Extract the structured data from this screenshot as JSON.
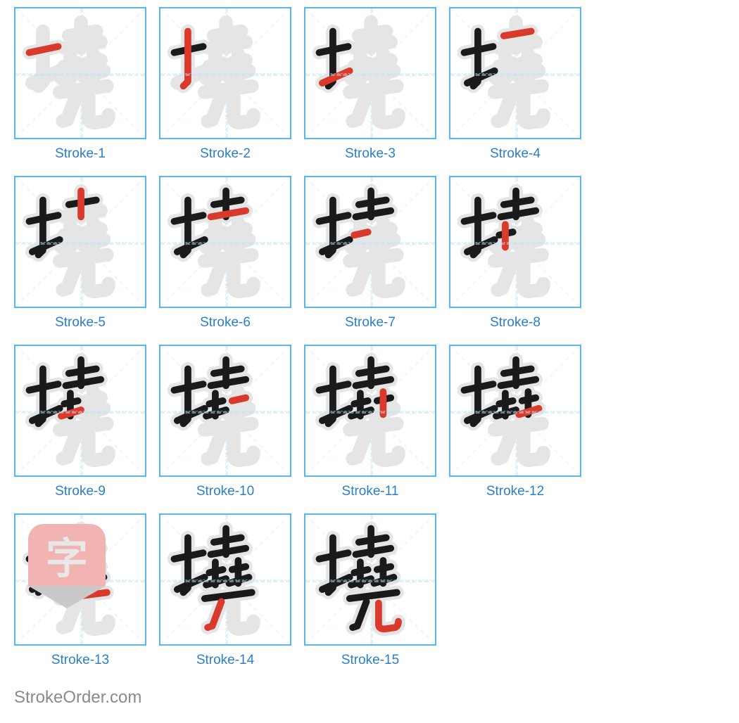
{
  "strokes": [
    {
      "label": "Stroke-1",
      "highlight": [
        0
      ],
      "show": [
        0
      ]
    },
    {
      "label": "Stroke-2",
      "highlight": [
        1
      ],
      "show": [
        0,
        1
      ]
    },
    {
      "label": "Stroke-3",
      "highlight": [
        2
      ],
      "show": [
        0,
        1,
        2
      ]
    },
    {
      "label": "Stroke-4",
      "highlight": [
        3
      ],
      "show": [
        0,
        1,
        2,
        3
      ]
    },
    {
      "label": "Stroke-5",
      "highlight": [
        4
      ],
      "show": [
        0,
        1,
        2,
        3,
        4
      ]
    },
    {
      "label": "Stroke-6",
      "highlight": [
        5
      ],
      "show": [
        0,
        1,
        2,
        3,
        4,
        5
      ]
    },
    {
      "label": "Stroke-7",
      "highlight": [
        6
      ],
      "show": [
        0,
        1,
        2,
        3,
        4,
        5,
        6
      ]
    },
    {
      "label": "Stroke-8",
      "highlight": [
        7
      ],
      "show": [
        0,
        1,
        2,
        3,
        4,
        5,
        6,
        7
      ]
    },
    {
      "label": "Stroke-9",
      "highlight": [
        8
      ],
      "show": [
        0,
        1,
        2,
        3,
        4,
        5,
        6,
        7,
        8
      ]
    },
    {
      "label": "Stroke-10",
      "highlight": [
        9
      ],
      "show": [
        0,
        1,
        2,
        3,
        4,
        5,
        6,
        7,
        8,
        9
      ]
    },
    {
      "label": "Stroke-11",
      "highlight": [
        10
      ],
      "show": [
        0,
        1,
        2,
        3,
        4,
        5,
        6,
        7,
        8,
        9,
        10
      ]
    },
    {
      "label": "Stroke-12",
      "highlight": [
        11
      ],
      "show": [
        0,
        1,
        2,
        3,
        4,
        5,
        6,
        7,
        8,
        9,
        10,
        11
      ]
    },
    {
      "label": "Stroke-13",
      "highlight": [
        12
      ],
      "show": [
        0,
        1,
        2,
        3,
        4,
        5,
        6,
        7,
        8,
        9,
        10,
        11,
        12
      ]
    },
    {
      "label": "Stroke-14",
      "highlight": [
        13
      ],
      "show": [
        0,
        1,
        2,
        3,
        4,
        5,
        6,
        7,
        8,
        9,
        10,
        11,
        12,
        13
      ]
    },
    {
      "label": "Stroke-15",
      "highlight": [
        14
      ],
      "show": [
        0,
        1,
        2,
        3,
        4,
        5,
        6,
        7,
        8,
        9,
        10,
        11,
        12,
        13,
        14
      ]
    }
  ],
  "stroke_paths": [
    "M 18 58 L 56 50",
    "M 36 30 L 36 96 L 30 102",
    "M 22 98 L 58 82",
    "M 70 36 L 106 30",
    "M 86 18 L 86 52",
    "M 66 52 L 112 44",
    "M 64 76 L 82 72",
    "M 72 62 L 72 92",
    "M 60 92 L 86 84",
    "M 94 72 L 112 68",
    "M 102 60 L 102 90",
    "M 90 90 L 116 82",
    "M 58 110 L 120 102",
    "M 80 114 L 68 146 L 62 148",
    "M 96 116 L 96 144 Q 96 150 104 150 L 118 148 Q 122 146 122 140"
  ],
  "colors": {
    "border": "#5cb6e6",
    "guide": "#bfe3f7",
    "ghost": "#e5e5e5",
    "ghost_fill": "#f0f0f0",
    "ink": "#1a1a1a",
    "highlight": "#d93a2b",
    "label": "#2a7fc9",
    "logo_bg": "#f2b3b3",
    "logo_text": "#e8e8e8",
    "logo_tip": "#c9c9c9",
    "watermark": "#8a8a8a"
  },
  "box_size": 188,
  "svg_viewbox": "0 0 170 170",
  "stroke_width": 9,
  "ghost_width": 18,
  "logo_char": "字",
  "watermark_text": "StrokeOrder.com",
  "label_fontsize": 19
}
